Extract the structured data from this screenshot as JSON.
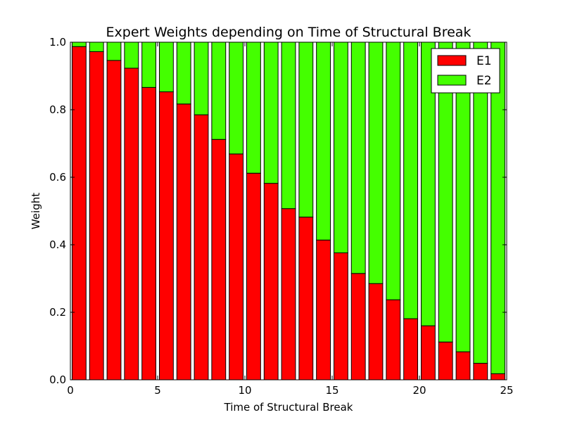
{
  "chart_data": {
    "type": "bar",
    "stacked": true,
    "title": "Expert Weights depending on Time of Structural Break",
    "xlabel": "Time of Structural Break",
    "ylabel": "Weight",
    "xlim": [
      0,
      25
    ],
    "ylim": [
      0.0,
      1.0
    ],
    "xticks": [
      "0",
      "5",
      "10",
      "15",
      "20",
      "25"
    ],
    "yticks": [
      "0.0",
      "0.2",
      "0.4",
      "0.6",
      "0.8",
      "1.0"
    ],
    "grid": false,
    "legend_position": "top-right",
    "x": [
      0,
      1,
      2,
      3,
      4,
      5,
      6,
      7,
      8,
      9,
      10,
      11,
      12,
      13,
      14,
      15,
      16,
      17,
      18,
      19,
      20,
      21,
      22,
      23,
      24
    ],
    "series": [
      {
        "name": "E1",
        "color": "#ff0000",
        "values": [
          0.987,
          0.972,
          0.946,
          0.923,
          0.866,
          0.853,
          0.817,
          0.785,
          0.712,
          0.669,
          0.612,
          0.582,
          0.507,
          0.482,
          0.414,
          0.376,
          0.315,
          0.285,
          0.237,
          0.181,
          0.16,
          0.112,
          0.083,
          0.049,
          0.018
        ]
      },
      {
        "name": "E2",
        "color": "#44ff00",
        "values": [
          0.013,
          0.028,
          0.054,
          0.077,
          0.134,
          0.147,
          0.183,
          0.215,
          0.288,
          0.331,
          0.388,
          0.418,
          0.493,
          0.518,
          0.586,
          0.624,
          0.685,
          0.715,
          0.763,
          0.819,
          0.84,
          0.888,
          0.917,
          0.951,
          0.982
        ]
      }
    ]
  }
}
